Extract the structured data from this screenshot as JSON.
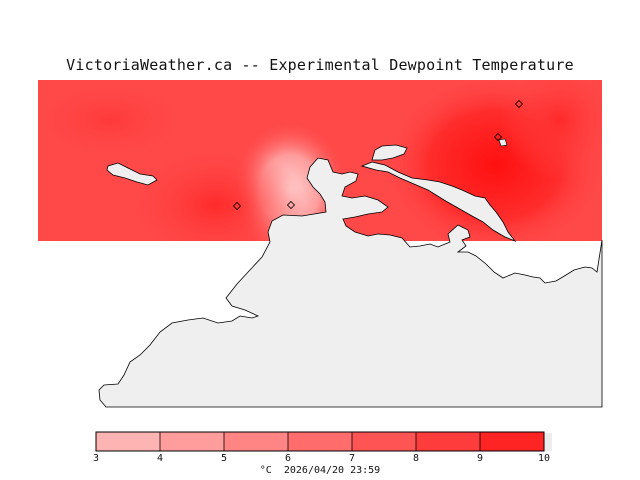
{
  "title": "VictoriaWeather.ca -- Experimental Dewpoint Temperature",
  "colorbar": {
    "ticks": [
      "3",
      "4",
      "5",
      "6",
      "7",
      "8",
      "9",
      "10"
    ],
    "values": [
      3,
      4,
      5,
      6,
      7,
      8,
      9,
      10
    ],
    "colors": [
      "#ffb4b4",
      "#ff9c9c",
      "#ff8484",
      "#ff6c6c",
      "#ff5454",
      "#ff3c3c",
      "#ff2424",
      "#ff0000"
    ],
    "unit": "°C",
    "timestamp": "2026/04/20 23:59"
  },
  "colors": {
    "land": "#efefef",
    "coastline": "#000000",
    "background": "#ffffff",
    "field_base": "#ff4848"
  },
  "stations": [
    {
      "id": "station-1"
    },
    {
      "id": "station-2"
    },
    {
      "id": "station-3"
    },
    {
      "id": "station-4"
    }
  ]
}
